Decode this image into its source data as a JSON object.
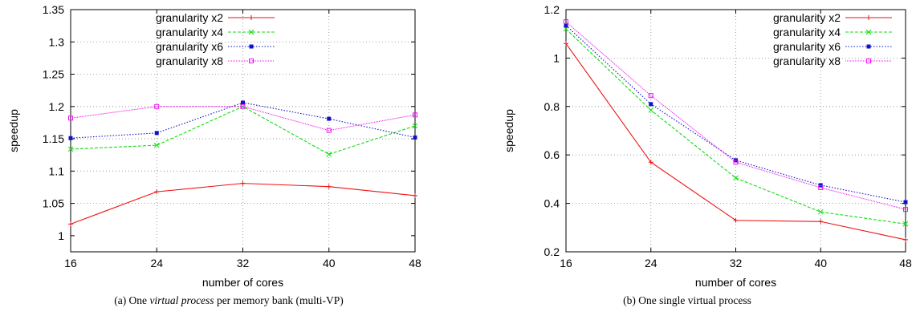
{
  "chart_data": [
    {
      "type": "line",
      "title": "",
      "caption": {
        "prefix": "(a) One ",
        "italic": "virtual process",
        "suffix": " per memory bank (multi-VP)"
      },
      "xlabel": "number of cores",
      "ylabel": "speedup",
      "x": [
        16,
        24,
        32,
        40,
        48
      ],
      "xlim": [
        16,
        48
      ],
      "ylim": [
        0.975,
        1.35
      ],
      "yticks": [
        1,
        1.05,
        1.1,
        1.15,
        1.2,
        1.25,
        1.3,
        1.35
      ],
      "ytick_labels": [
        "1",
        "1.05",
        "1.1",
        "1.15",
        "1.2",
        "1.25",
        "1.3",
        "1.35"
      ],
      "grid": true,
      "legend": "top-left",
      "series": [
        {
          "name": "granularity x2",
          "color": "#ee1111",
          "dash": "solid",
          "marker": "plus",
          "values": [
            1.018,
            1.068,
            1.081,
            1.076,
            1.062
          ]
        },
        {
          "name": "granularity x4",
          "color": "#11dd11",
          "dash": "dashed",
          "marker": "cross",
          "values": [
            1.134,
            1.14,
            1.2,
            1.126,
            1.17
          ]
        },
        {
          "name": "granularity x6",
          "color": "#1111cc",
          "dash": "dotted",
          "marker": "square-filled",
          "values": [
            1.151,
            1.159,
            1.206,
            1.181,
            1.152
          ]
        },
        {
          "name": "granularity x8",
          "color": "#ee11ee",
          "dash": "fine",
          "marker": "square-open",
          "values": [
            1.182,
            1.2,
            1.2,
            1.163,
            1.187
          ]
        }
      ]
    },
    {
      "type": "line",
      "title": "",
      "caption": {
        "prefix": "(b) One single virtual process",
        "italic": "",
        "suffix": ""
      },
      "xlabel": "number of cores",
      "ylabel": "speedup",
      "x": [
        16,
        24,
        32,
        40,
        48
      ],
      "xlim": [
        16,
        48
      ],
      "ylim": [
        0.2,
        1.2
      ],
      "yticks": [
        0.2,
        0.4,
        0.6,
        0.8,
        1,
        1.2
      ],
      "ytick_labels": [
        "0.2",
        "0.4",
        "0.6",
        "0.8",
        "1",
        "1.2"
      ],
      "grid": true,
      "legend": "top-right",
      "series": [
        {
          "name": "granularity x2",
          "color": "#ee1111",
          "dash": "solid",
          "marker": "plus",
          "values": [
            1.06,
            0.57,
            0.33,
            0.325,
            0.25
          ]
        },
        {
          "name": "granularity x4",
          "color": "#11dd11",
          "dash": "dashed",
          "marker": "cross",
          "values": [
            1.12,
            0.785,
            0.505,
            0.365,
            0.315
          ]
        },
        {
          "name": "granularity x6",
          "color": "#1111cc",
          "dash": "dotted",
          "marker": "square-filled",
          "values": [
            1.135,
            0.81,
            0.578,
            0.475,
            0.405
          ]
        },
        {
          "name": "granularity x8",
          "color": "#ee11ee",
          "dash": "fine",
          "marker": "square-open",
          "values": [
            1.15,
            0.845,
            0.57,
            0.465,
            0.375
          ]
        }
      ]
    }
  ]
}
